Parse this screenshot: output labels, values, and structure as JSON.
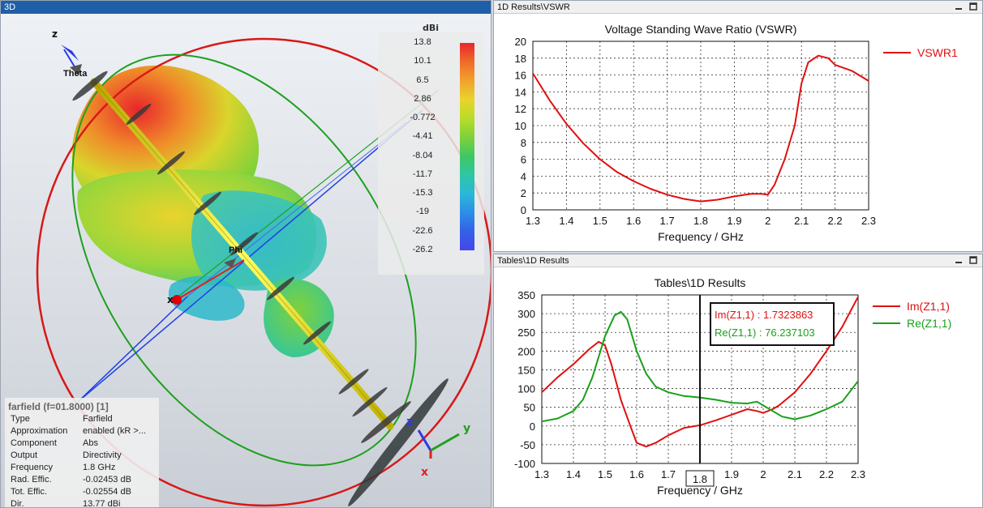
{
  "panels": {
    "view3d": {
      "title": "3D"
    },
    "vswr": {
      "title": "1D Results\\VSWR"
    },
    "tables": {
      "title": "Tables\\1D Results"
    }
  },
  "scene3d": {
    "axis_z": "z",
    "axis_x": "x",
    "axis_y": "y",
    "label_theta": "Theta",
    "label_phi": "Phi",
    "colorbar": {
      "unit": "dBi",
      "ticks": [
        "13.8",
        "10.1",
        "6.5",
        "2.86",
        "-0.772",
        "-4.41",
        "-8.04",
        "-11.7",
        "-15.3",
        "-19",
        "-22.6",
        "-26.2"
      ],
      "colors": [
        "#e8262b",
        "#ef6b2a",
        "#f2a22b",
        "#e9d42c",
        "#b8dc2a",
        "#7fd13a",
        "#3fc765",
        "#2fc6a4",
        "#2bb8d8",
        "#2c8ee6",
        "#3460e8",
        "#4646e8"
      ]
    },
    "info": {
      "title": "farfield (f=01.8000) [1]",
      "rows": [
        {
          "k": "Type",
          "v": "Farfield"
        },
        {
          "k": "Approximation",
          "v": "enabled (kR >..."
        },
        {
          "k": "Component",
          "v": "Abs"
        },
        {
          "k": "Output",
          "v": "Directivity"
        },
        {
          "k": "Frequency",
          "v": "1.8 GHz"
        },
        {
          "k": "Rad. Effic.",
          "v": "-0.02453 dB"
        },
        {
          "k": "Tot. Effic.",
          "v": "-0.02554 dB"
        },
        {
          "k": "Dir.",
          "v": "13.77 dBi"
        }
      ]
    }
  },
  "chart_data": [
    {
      "type": "line",
      "title": "Voltage Standing Wave Ratio (VSWR)",
      "xlabel": "Frequency / GHz",
      "ylabel": "",
      "xlim": [
        1.3,
        2.3
      ],
      "ylim": [
        0,
        20
      ],
      "xticks": [
        "1.3",
        "1.4",
        "1.5",
        "1.6",
        "1.7",
        "1.8",
        "1.9",
        "2",
        "2.1",
        "2.2",
        "2.3"
      ],
      "yticks": [
        "0",
        "2",
        "4",
        "6",
        "8",
        "10",
        "12",
        "14",
        "16",
        "18",
        "20"
      ],
      "grid": true,
      "legend": "top-right",
      "series": [
        {
          "name": "VSWR1",
          "color": "#e01010",
          "x": [
            1.3,
            1.35,
            1.4,
            1.45,
            1.5,
            1.55,
            1.6,
            1.65,
            1.7,
            1.75,
            1.8,
            1.85,
            1.9,
            1.95,
            1.98,
            2.0,
            2.02,
            2.05,
            2.08,
            2.1,
            2.12,
            2.15,
            2.18,
            2.2,
            2.25,
            2.3
          ],
          "y": [
            16.2,
            13.0,
            10.2,
            7.9,
            6.0,
            4.5,
            3.4,
            2.5,
            1.8,
            1.3,
            1.0,
            1.2,
            1.6,
            1.9,
            1.9,
            1.8,
            3.0,
            6.0,
            10.0,
            15.0,
            17.5,
            18.3,
            18.0,
            17.2,
            16.5,
            15.3
          ]
        }
      ]
    },
    {
      "type": "line",
      "title": "Tables\\1D Results",
      "xlabel": "Frequency / GHz",
      "ylabel": "",
      "xlim": [
        1.3,
        2.3
      ],
      "ylim": [
        -100,
        350
      ],
      "xticks": [
        "1.3",
        "1.4",
        "1.5",
        "1.6",
        "1.7",
        "1.8",
        "1.9",
        "2",
        "2.1",
        "2.2",
        "2.3"
      ],
      "yticks": [
        "-100",
        "-50",
        "0",
        "50",
        "100",
        "150",
        "200",
        "250",
        "300",
        "350"
      ],
      "grid": true,
      "legend": "top-right",
      "marker_x": 1.8,
      "marker_label": "1.8",
      "annotations": [
        "Im(Z1,1) : 1.7323863",
        "Re(Z1,1) : 76.237103"
      ],
      "series": [
        {
          "name": "Im(Z1,1)",
          "color": "#e01010",
          "x": [
            1.3,
            1.35,
            1.4,
            1.45,
            1.48,
            1.5,
            1.52,
            1.55,
            1.58,
            1.6,
            1.63,
            1.66,
            1.7,
            1.75,
            1.8,
            1.85,
            1.9,
            1.95,
            1.98,
            2.0,
            2.03,
            2.05,
            2.1,
            2.15,
            2.2,
            2.25,
            2.3
          ],
          "y": [
            90,
            130,
            165,
            205,
            225,
            215,
            165,
            70,
            0,
            -45,
            -55,
            -45,
            -25,
            -5,
            2,
            15,
            30,
            45,
            40,
            35,
            45,
            55,
            90,
            140,
            200,
            265,
            345
          ]
        },
        {
          "name": "Re(Z1,1)",
          "color": "#1aa01a",
          "x": [
            1.3,
            1.35,
            1.4,
            1.43,
            1.46,
            1.5,
            1.53,
            1.55,
            1.57,
            1.6,
            1.63,
            1.66,
            1.7,
            1.75,
            1.8,
            1.85,
            1.9,
            1.95,
            1.98,
            2.0,
            2.03,
            2.06,
            2.1,
            2.15,
            2.2,
            2.25,
            2.3
          ],
          "y": [
            12,
            20,
            40,
            70,
            130,
            240,
            295,
            305,
            285,
            200,
            140,
            105,
            90,
            80,
            76,
            70,
            62,
            60,
            65,
            55,
            40,
            25,
            18,
            28,
            45,
            65,
            120
          ]
        }
      ]
    }
  ]
}
